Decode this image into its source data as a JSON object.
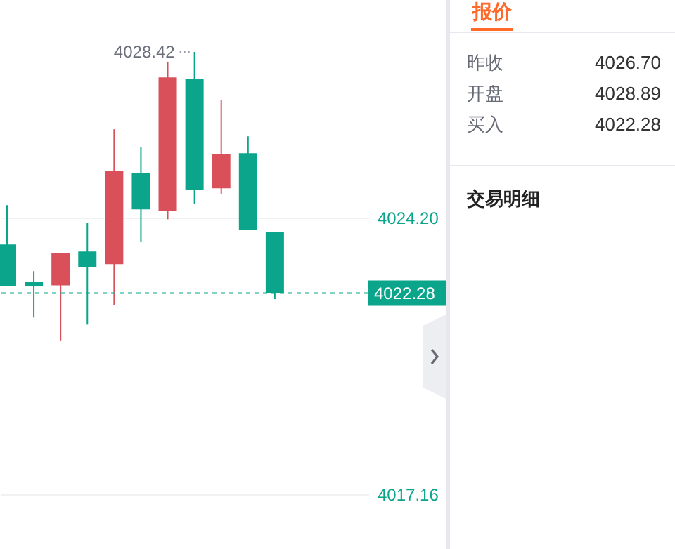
{
  "chart_data": [
    {
      "type": "candlestick",
      "categories": [
        null,
        null,
        null,
        null,
        null,
        null,
        null,
        null,
        null,
        null,
        null
      ],
      "ohlc": [
        [
          4023.52,
          4024.52,
          4022.45,
          4022.45
        ],
        [
          4022.56,
          4022.84,
          4021.66,
          4022.45
        ],
        [
          4022.48,
          4023.31,
          4021.06,
          4023.31
        ],
        [
          4023.34,
          4024.06,
          4021.48,
          4022.95
        ],
        [
          4023.02,
          4026.45,
          4021.98,
          4025.38
        ],
        [
          4025.34,
          4025.99,
          4023.59,
          4024.41
        ],
        [
          4024.38,
          4028.17,
          4024.16,
          4027.77
        ],
        [
          4027.74,
          4028.42,
          4024.56,
          4024.91
        ],
        [
          4024.95,
          4027.2,
          4024.81,
          4025.81
        ],
        [
          4025.84,
          4026.27,
          4023.88,
          4023.88
        ],
        [
          4023.84,
          4023.84,
          4022.13,
          4022.28
        ]
      ],
      "colors": [
        "#0aa58a",
        "#0aa58a",
        "#d9505a",
        "#0aa58a",
        "#d9505a",
        "#0aa58a",
        "#d9505a",
        "#0aa58a",
        "#d9505a",
        "#0aa58a",
        "#0aa58a"
      ],
      "ylim": [
        4015.77,
        4029.74
      ],
      "yticks": [
        {
          "value": 4017.16,
          "label": "4017.16"
        },
        {
          "value": 4024.2,
          "label": "4024.20"
        }
      ],
      "grid": "y",
      "ref_lines": [
        {
          "axis": "y",
          "value": 4022.28,
          "label": "4022.28",
          "color": "#0aa58a",
          "line_style": "dashed"
        }
      ],
      "annotations": [
        "4028.42"
      ]
    },
    {
      "type": "other",
      "title": "报价",
      "categories": [
        "昨收",
        "开盘",
        "买入"
      ],
      "value_labels": [
        "4026.70",
        "4028.89",
        "4022.28"
      ],
      "annotations": [
        "交易明细"
      ]
    }
  ]
}
